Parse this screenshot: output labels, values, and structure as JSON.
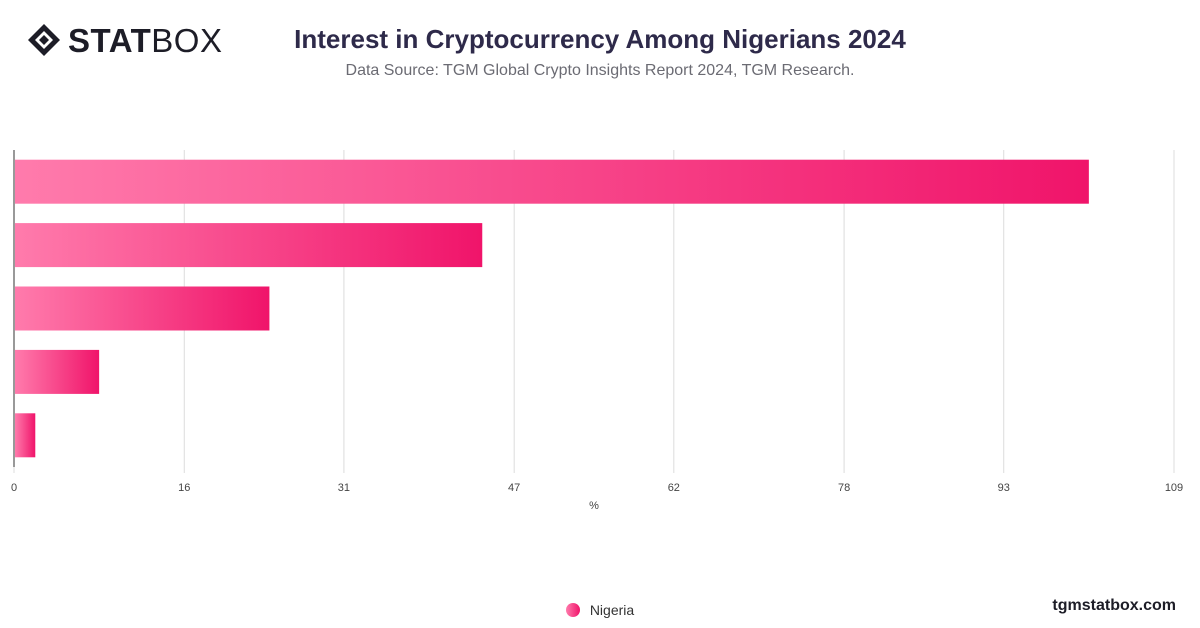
{
  "brand": {
    "logo_bold": "STAT",
    "logo_light": "BOX",
    "site": "tgmstatbox.com"
  },
  "header": {
    "title": "Interest in Cryptocurrency Among Nigerians 2024",
    "subtitle": "Data Source: TGM Global Crypto Insights Report 2024, TGM Research."
  },
  "colors": {
    "bar_start": "#ff7bac",
    "bar_end": "#f0146a",
    "grid": "#dcdcdc",
    "axis": "#333333"
  },
  "chart_data": {
    "type": "bar",
    "orientation": "horizontal",
    "categories": [
      "",
      "",
      "",
      "",
      ""
    ],
    "series": [
      {
        "name": "Nigeria",
        "values": [
          101,
          44,
          24,
          8,
          2
        ]
      }
    ],
    "xlabel": "%",
    "ylabel": "",
    "xlim": [
      0,
      109
    ],
    "xticks": [
      "0",
      "16",
      "31",
      "47",
      "62",
      "78",
      "93",
      "109"
    ],
    "grid": true,
    "legend": "bottom-center"
  }
}
